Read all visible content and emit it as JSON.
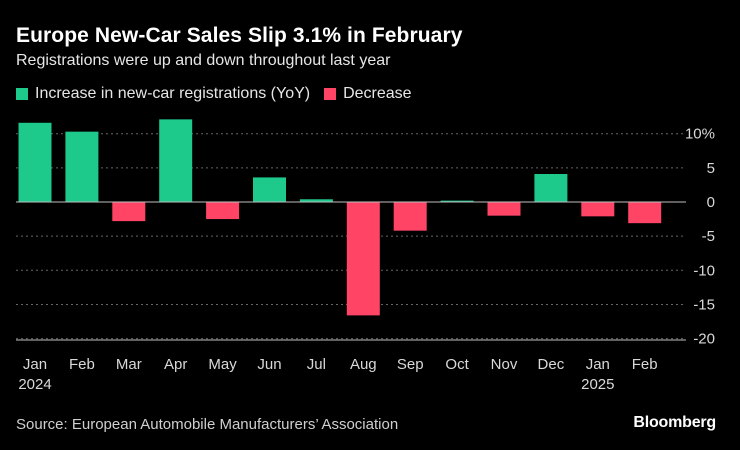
{
  "header": {
    "title": "Europe New-Car Sales Slip 3.1% in February",
    "subtitle": "Registrations were up and down throughout last year"
  },
  "legend": {
    "increase_label": "Increase in new-car registrations (YoY)",
    "decrease_label": "Decrease"
  },
  "colors": {
    "increase": "#1ec98c",
    "decrease": "#ff4466",
    "grid": "#666666",
    "axis_text": "#d9d9d9"
  },
  "footer": {
    "source": "Source: European Automobile Manufacturers’ Association",
    "brand": "Bloomberg"
  },
  "chart_data": {
    "type": "bar",
    "categories": [
      "Jan",
      "Feb",
      "Mar",
      "Apr",
      "May",
      "Jun",
      "Jul",
      "Aug",
      "Sep",
      "Oct",
      "Nov",
      "Dec",
      "Jan",
      "Feb"
    ],
    "year_labels": {
      "0": "2024",
      "12": "2025"
    },
    "values": [
      11.6,
      10.3,
      -2.8,
      12.1,
      -2.5,
      3.6,
      0.4,
      -16.6,
      -4.2,
      0.2,
      -2.0,
      4.1,
      -2.1,
      -3.1
    ],
    "yticks": [
      10,
      5,
      0,
      -5,
      -10,
      -15,
      -20
    ],
    "ytick_labels": [
      "10%",
      "5",
      "0",
      "-5",
      "-10",
      "-15",
      "-20"
    ],
    "ylim": [
      -20,
      10
    ],
    "grid": true,
    "legend_position": "top-left"
  }
}
